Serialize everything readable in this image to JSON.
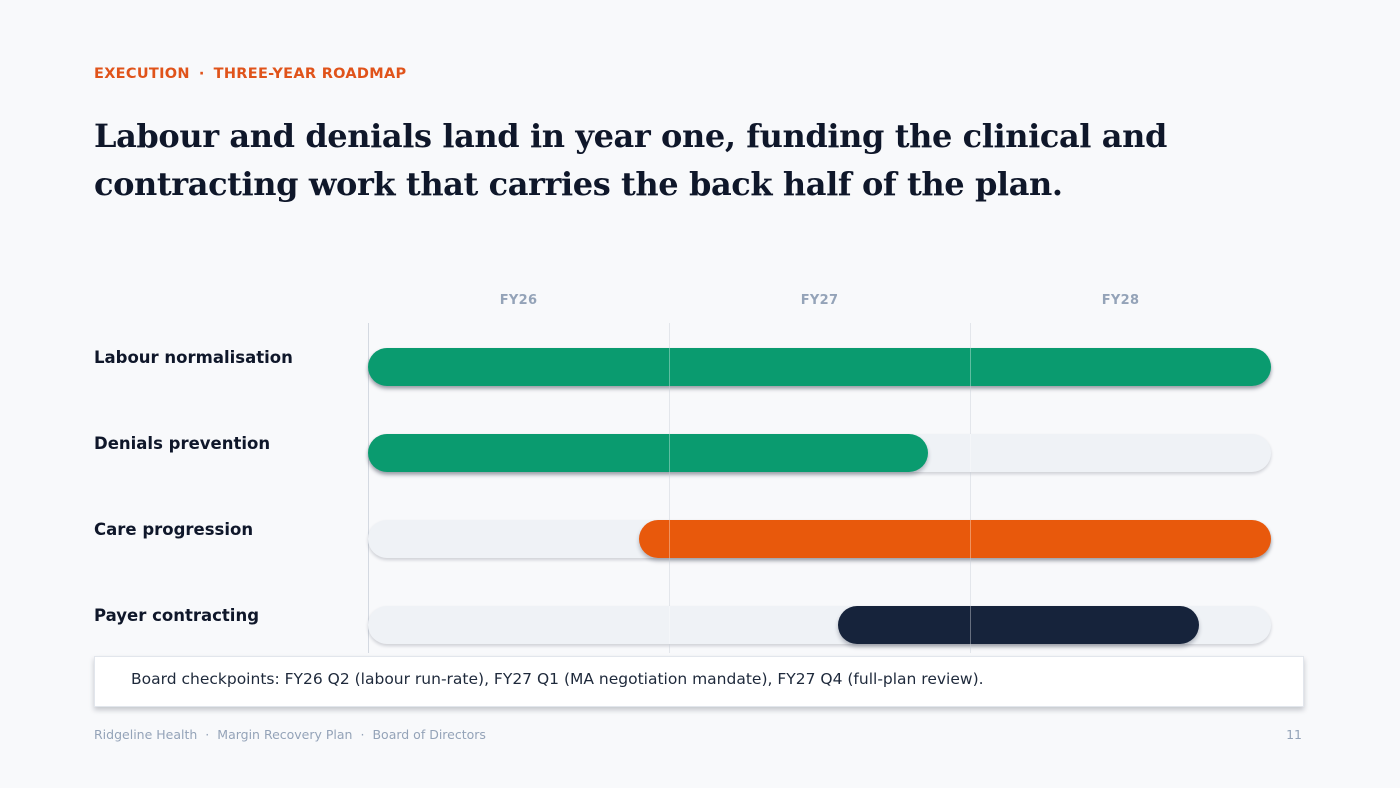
{
  "header": {
    "eyebrow_left": "EXECUTION",
    "eyebrow_sep": "·",
    "eyebrow_right": "THREE-YEAR ROADMAP",
    "title": "Labour and denials land in year one, funding the clinical and contracting work that carries the back half of the plan."
  },
  "chart_data": {
    "type": "gantt",
    "x_axis": {
      "categories": [
        "FY26",
        "FY27",
        "FY28"
      ],
      "unit": "fiscal year",
      "range": [
        0,
        3
      ]
    },
    "series": [
      {
        "label": "Labour normalisation",
        "start": 0.0,
        "end": 3.0,
        "color": "#0a9b6f"
      },
      {
        "label": "Denials prevention",
        "start": 0.0,
        "end": 1.86,
        "color": "#0a9b6f"
      },
      {
        "label": "Care progression",
        "start": 0.9,
        "end": 3.0,
        "color": "#e8590c"
      },
      {
        "label": "Payer contracting",
        "start": 1.56,
        "end": 2.76,
        "color": "#16233b"
      }
    ],
    "gridlines": true,
    "track_color": "#eff2f6"
  },
  "callout": {
    "text": "Board checkpoints: FY26 Q2 (labour run-rate), FY27 Q1 (MA negotiation mandate), FY27 Q4 (full-plan review)."
  },
  "footer": {
    "org": "Ridgeline Health",
    "plan": "Margin Recovery Plan",
    "audience": "Board of Directors",
    "sep": "·",
    "page": "11"
  },
  "colors": {
    "accent": "#e0531a",
    "green": "#0a9b6f",
    "orange": "#e8590c",
    "navy": "#16233b"
  }
}
